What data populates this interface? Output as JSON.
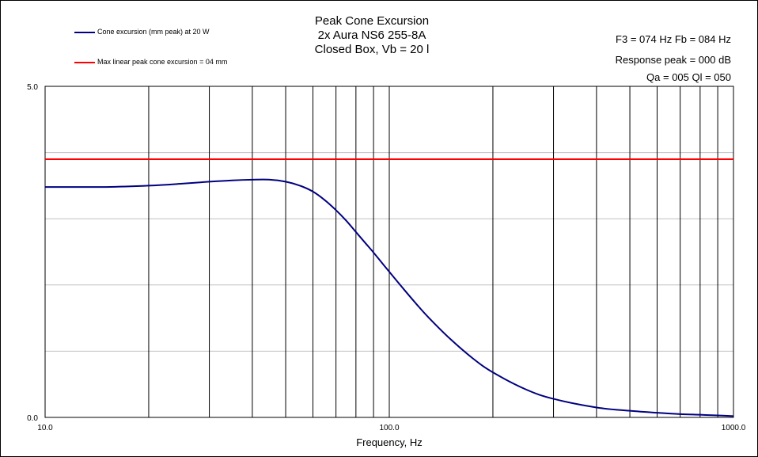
{
  "titles": [
    "Peak Cone Excursion",
    "2x Aura NS6 255-8A",
    "Closed Box, Vb = 20 l"
  ],
  "info": {
    "line1": "F3 = 074  Hz  Fb = 084  Hz",
    "line2": "Response peak = 000  dB",
    "line3": "Qa = 005   Ql = 050"
  },
  "colors": {
    "series_excursion": "#000080",
    "series_max": "#ff0000",
    "grid_vertical": "#000000",
    "grid_horizontal": "#c0c0c0"
  },
  "chart_data": {
    "type": "line",
    "title": "Peak Cone Excursion",
    "xlabel": "Frequency, Hz",
    "ylabel": "",
    "xscale": "log",
    "xlim": [
      10,
      1000
    ],
    "ylim": [
      0,
      5
    ],
    "x_tick_labels": [
      "10.0",
      "100.0",
      "1000.0"
    ],
    "y_tick_labels": [
      "0.0",
      "5.0"
    ],
    "grid": true,
    "legend_position": "top-left",
    "series": [
      {
        "name": "Cone excursion (mm peak) at 20 W",
        "color": "#000080",
        "x": [
          10,
          15,
          20,
          25,
          30,
          35,
          40,
          45,
          50,
          55,
          60,
          65,
          70,
          75,
          80,
          85,
          90,
          95,
          100,
          110,
          120,
          130,
          150,
          175,
          200,
          250,
          300,
          400,
          500,
          600,
          700,
          800,
          900,
          1000
        ],
        "y": [
          3.48,
          3.48,
          3.5,
          3.53,
          3.56,
          3.58,
          3.59,
          3.59,
          3.56,
          3.5,
          3.41,
          3.28,
          3.13,
          2.97,
          2.8,
          2.64,
          2.49,
          2.34,
          2.2,
          1.94,
          1.71,
          1.51,
          1.19,
          0.89,
          0.68,
          0.42,
          0.28,
          0.15,
          0.1,
          0.07,
          0.05,
          0.04,
          0.03,
          0.02
        ]
      },
      {
        "name": "Max linear peak cone excursion = 04 mm",
        "color": "#ff0000",
        "x": [
          10,
          1000
        ],
        "y": [
          3.9,
          3.9
        ]
      }
    ]
  }
}
